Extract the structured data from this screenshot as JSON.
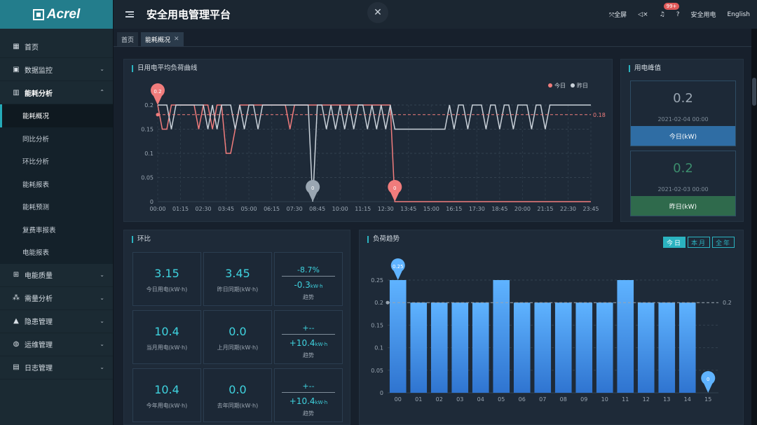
{
  "brand": {
    "logo_text": "Acrel"
  },
  "header": {
    "app_title": "安全用电管理平台",
    "fullscreen_label": "全屏",
    "notification_count": "99+",
    "user_name": "安全用电",
    "language": "English"
  },
  "sidebar": {
    "items": [
      {
        "label": "首页",
        "icon": "home-icon"
      },
      {
        "label": "数据监控",
        "icon": "monitor-icon"
      },
      {
        "label": "能耗分析",
        "icon": "bar-chart-icon"
      },
      {
        "label": "电能质量",
        "icon": "power-quality-icon"
      },
      {
        "label": "需量分析",
        "icon": "demand-icon"
      },
      {
        "label": "隐患管理",
        "icon": "warning-icon"
      },
      {
        "label": "运维管理",
        "icon": "globe-icon"
      },
      {
        "label": "日志管理",
        "icon": "log-icon"
      }
    ],
    "sub_items": [
      "能耗概况",
      "同比分析",
      "环比分析",
      "能耗报表",
      "能耗预测",
      "复费率报表",
      "电能报表"
    ]
  },
  "tabs": [
    {
      "label": "首页"
    },
    {
      "label": "能耗概况"
    }
  ],
  "daily_curve": {
    "title": "日用电平均负荷曲线",
    "legend": [
      "今日",
      "昨日"
    ],
    "colors": {
      "today": "#f07c7c",
      "yesterday": "#c9d1d9"
    },
    "markers": {
      "max_today": "0.2",
      "min_yesterday": "0",
      "min_today": "0",
      "avg": "0.18"
    }
  },
  "peak": {
    "title": "用电峰值",
    "today": {
      "value": "0.2",
      "date": "2021-02-04 00:00",
      "label": "今日(kW)"
    },
    "yesterday": {
      "value": "0.2",
      "date": "2021-02-03 00:00",
      "label": "昨日(kW)"
    }
  },
  "ring": {
    "title": "环比",
    "rows": [
      {
        "cur_val": "3.15",
        "cur_lbl": "今日用电(kW·h)",
        "prev_val": "3.45",
        "prev_lbl": "昨日同期(kW·h)",
        "trend_pct": "-8.7%",
        "trend_abs": "-0.3",
        "trend_unit": "kW·h",
        "trend_lbl": "趋势"
      },
      {
        "cur_val": "10.4",
        "cur_lbl": "当月用电(kW·h)",
        "prev_val": "0.0",
        "prev_lbl": "上月同期(kW·h)",
        "trend_pct": "+--",
        "trend_abs": "+10.4",
        "trend_unit": "kW·h",
        "trend_lbl": "趋势"
      },
      {
        "cur_val": "10.4",
        "cur_lbl": "今年用电(kW·h)",
        "prev_val": "0.0",
        "prev_lbl": "去年同期(kW·h)",
        "trend_pct": "+--",
        "trend_abs": "+10.4",
        "trend_unit": "kW·h",
        "trend_lbl": "趋势"
      }
    ]
  },
  "load_trend": {
    "title": "负荷趋势",
    "range_buttons": [
      "今日",
      "本月",
      "全年"
    ],
    "active_range": "今日"
  },
  "chart_data": [
    {
      "type": "line",
      "title": "日用电平均负荷曲线",
      "x_ticks": [
        "00:00",
        "01:15",
        "02:30",
        "03:45",
        "05:00",
        "06:15",
        "07:30",
        "08:45",
        "10:00",
        "11:15",
        "12:30",
        "13:45",
        "15:00",
        "16:15",
        "17:30",
        "18:45",
        "20:00",
        "21:15",
        "22:30",
        "23:45"
      ],
      "ylim": [
        0,
        0.2
      ],
      "y_ticks": [
        0,
        0.05,
        0.1,
        0.15,
        0.2
      ],
      "series": [
        {
          "name": "今日",
          "color": "#f07c7c",
          "values": [
            0.2,
            0.15,
            0.15,
            0.2,
            0.2,
            0.2,
            0.2,
            0.2,
            0.2,
            0.15,
            0.2,
            0.2,
            0.15,
            0.2,
            0.2,
            0.1,
            0.1,
            0.15,
            0.2,
            0.2,
            0.2,
            0.2,
            0.2,
            0.2,
            0.2,
            0.2,
            0.2,
            0.2,
            0.2,
            0.15,
            0.2,
            0.2,
            0.2,
            0.2,
            0.2,
            0.2,
            0.2,
            0.2,
            0.2,
            0.2,
            0.2,
            0.2,
            0.2,
            0.2,
            0.2,
            0.2,
            0.2,
            0.2,
            0.2,
            0.2,
            0.2,
            0.2,
            0,
            0,
            0,
            0,
            0,
            0,
            0,
            0,
            0,
            0,
            0,
            0,
            0,
            0,
            0,
            0,
            0,
            0,
            0,
            0,
            0,
            0,
            0,
            0,
            0,
            0,
            0,
            0,
            0,
            0,
            0,
            0,
            0,
            0,
            0,
            0,
            0,
            0,
            0,
            0,
            0,
            0,
            0,
            0
          ]
        },
        {
          "name": "昨日",
          "color": "#c9d1d9",
          "values": [
            0.2,
            0.2,
            0.2,
            0.15,
            0.2,
            0.2,
            0.2,
            0.2,
            0.2,
            0.2,
            0.2,
            0.15,
            0.2,
            0.15,
            0.2,
            0.2,
            0.2,
            0.15,
            0.2,
            0.15,
            0.2,
            0.2,
            0.15,
            0.2,
            0.2,
            0.2,
            0.2,
            0.2,
            0.2,
            0.2,
            0.2,
            0.2,
            0.2,
            0.2,
            0,
            0.2,
            0.2,
            0.15,
            0.2,
            0.15,
            0.2,
            0.15,
            0.2,
            0.15,
            0.2,
            0.2,
            0.15,
            0.2,
            0.15,
            0.2,
            0.15,
            0.2,
            0.15,
            0.15,
            0.15,
            0.15,
            0.15,
            0.15,
            0.15,
            0.15,
            0.15,
            0.15,
            0.15,
            0.15,
            0.2,
            0.15,
            0.2,
            0.2,
            0.15,
            0.2,
            0.2,
            0.2,
            0.15,
            0.2,
            0.2,
            0.15,
            0.2,
            0.2,
            0.15,
            0.2,
            0.2,
            0.2,
            0.15,
            0.2,
            0.2,
            0.15,
            0.2,
            0.2,
            0.2,
            0.2,
            0.2,
            0.2,
            0.2,
            0.2,
            0.2,
            0.2
          ]
        }
      ],
      "mark_line": 0.18
    },
    {
      "type": "bar",
      "title": "负荷趋势",
      "categories": [
        "00",
        "01",
        "02",
        "03",
        "04",
        "05",
        "06",
        "07",
        "08",
        "09",
        "10",
        "11",
        "12",
        "13",
        "14",
        "15"
      ],
      "values": [
        0.25,
        0.2,
        0.2,
        0.2,
        0.2,
        0.25,
        0.2,
        0.2,
        0.2,
        0.2,
        0.2,
        0.25,
        0.2,
        0.2,
        0.2,
        0
      ],
      "ylim": [
        0,
        0.25
      ],
      "y_ticks": [
        0,
        0.05,
        0.1,
        0.15,
        0.2,
        0.25
      ],
      "mark_line": 0.2,
      "max_marker": "0.25",
      "min_marker": "0"
    }
  ]
}
